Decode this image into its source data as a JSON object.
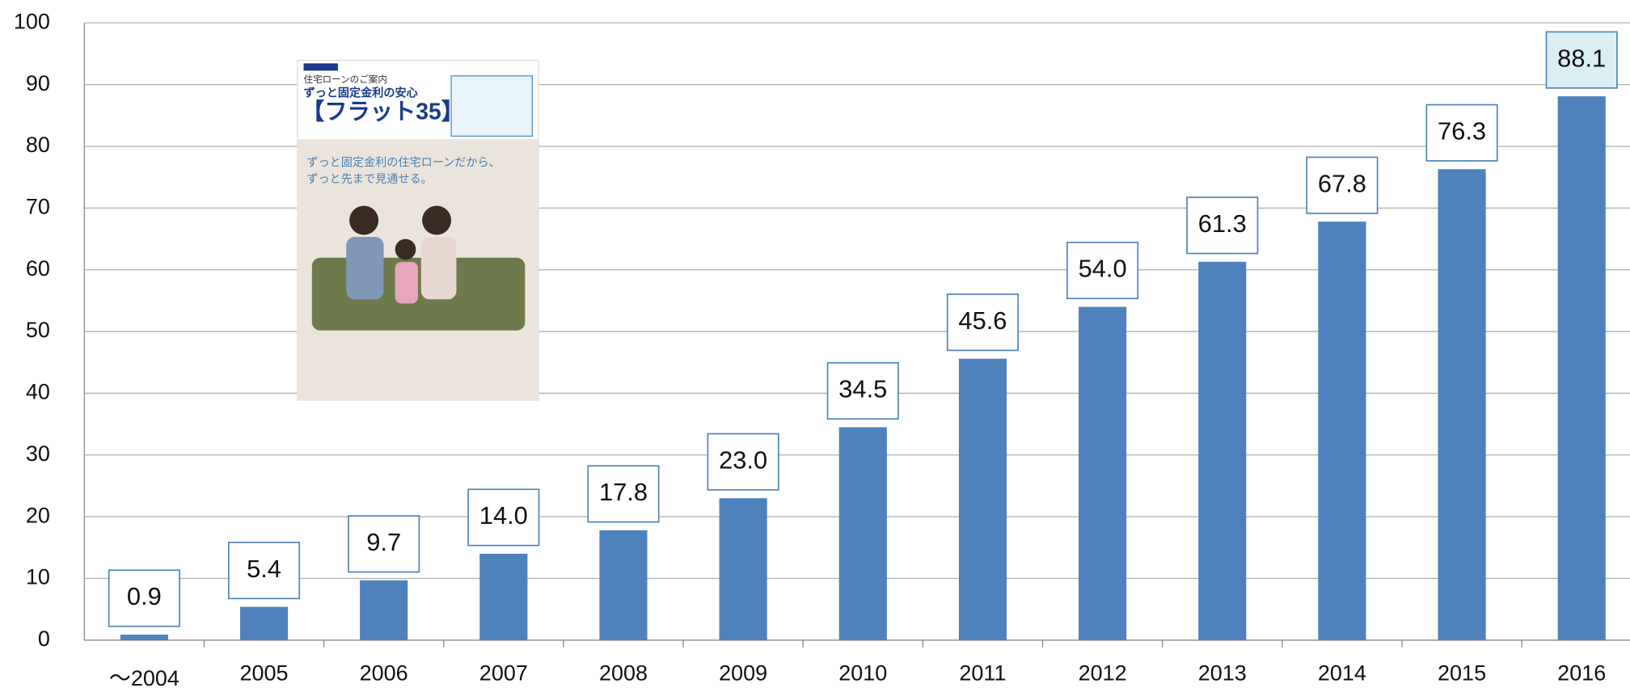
{
  "chart_data": {
    "type": "bar",
    "categories": [
      "～2004",
      "2005",
      "2006",
      "2007",
      "2008",
      "2009",
      "2010",
      "2011",
      "2012",
      "2013",
      "2014",
      "2015",
      "2016"
    ],
    "values": [
      0.9,
      5.4,
      9.7,
      14.0,
      17.8,
      23.0,
      34.5,
      45.6,
      54.0,
      61.3,
      67.8,
      76.3,
      88.1
    ],
    "value_labels": [
      "0.9",
      "5.4",
      "9.7",
      "14.0",
      "17.8",
      "23.0",
      "34.5",
      "45.6",
      "54.0",
      "61.3",
      "67.8",
      "76.3",
      "88.1"
    ],
    "color": "#4f81bd",
    "ylim": [
      0,
      100
    ],
    "yticks": [
      0,
      10,
      20,
      30,
      40,
      50,
      60,
      70,
      80,
      90,
      100
    ],
    "grid": true
  },
  "brochure": {
    "header": "住宅ローンのご案内",
    "title": "ずっと固定金利の安心",
    "brand": "【フラット35】",
    "caption": [
      "ずっと固定金利の住宅ローンだから、",
      "ずっと先まで見通せる。"
    ]
  }
}
